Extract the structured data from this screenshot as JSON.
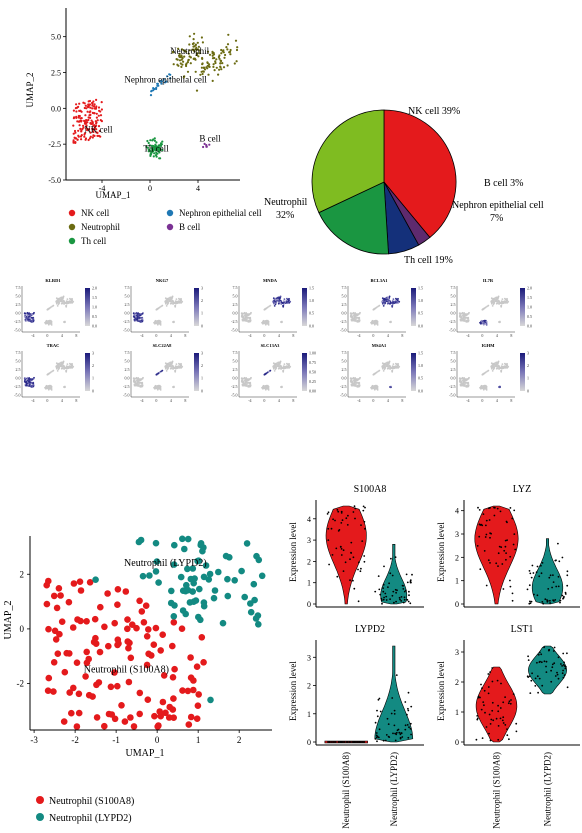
{
  "chart_data": [
    {
      "id": "umap_main",
      "type": "scatter",
      "xlabel": "UMAP_1",
      "ylabel": "UMAP_2",
      "xticks": [
        -4,
        0,
        4
      ],
      "yticks": [
        5.0,
        2.5,
        0.0,
        -2.5,
        -5.0
      ],
      "xlim": [
        -7,
        7.5
      ],
      "ylim": [
        -5,
        7
      ],
      "clusters": [
        {
          "name": "NK cell",
          "color": "#e41a1c",
          "center": [
            -5.2,
            -1.1
          ],
          "spread": [
            0.9,
            0.9
          ],
          "n": 160
        },
        {
          "name": "Neutrophil",
          "color": "#6b6b12",
          "center": [
            4.6,
            4.2
          ],
          "spread": [
            0.9,
            0.9
          ],
          "n": 150
        },
        {
          "name": "Th cell",
          "color": "#1a9641",
          "center": [
            0.4,
            -2.8
          ],
          "spread": [
            0.7,
            0.6
          ],
          "n": 80
        },
        {
          "name": "Nephron epithelial cell",
          "color": "#1f78b4",
          "center": [
            0.9,
            1.5
          ],
          "spread": [
            0.35,
            0.5
          ],
          "n": 22
        },
        {
          "name": "B cell",
          "color": "#7b3294",
          "center": [
            4.7,
            -2.6
          ],
          "spread": [
            0.2,
            0.15
          ],
          "n": 6
        }
      ],
      "annotations": [
        {
          "text": "Neutrophil",
          "x": 3.3,
          "y": 3.8
        },
        {
          "text": "Nephron epithelial cell",
          "x": 1.3,
          "y": 1.8
        },
        {
          "text": "NK cell",
          "x": -4.3,
          "y": -1.7
        },
        {
          "text": "Th cell",
          "x": 0.5,
          "y": -3.0
        },
        {
          "text": "B cell",
          "x": 5.0,
          "y": -2.3
        }
      ]
    },
    {
      "id": "pie",
      "type": "pie",
      "slices": [
        {
          "label": "NK cell 39%",
          "value": 39,
          "color": "#e41a1c"
        },
        {
          "label": "B cell 3%",
          "value": 3,
          "color": "#5e2a6e"
        },
        {
          "label": "Nephron epithelial cell 7%",
          "value": 7,
          "color": "#14307a"
        },
        {
          "label": "Th cell 19%",
          "value": 19,
          "color": "#1a9641"
        },
        {
          "label": "Neutrophil 32%",
          "value": 32,
          "color": "#7fbc21"
        }
      ]
    },
    {
      "id": "feature_plots",
      "type": "heatmap",
      "panels": [
        {
          "gene": "KLRD1",
          "ticks": [
            "2.0",
            "1.5",
            "1.0",
            "0.5",
            "0.0"
          ],
          "high": "NK cell"
        },
        {
          "gene": "NKG7",
          "ticks": [
            "3",
            "2",
            "1",
            "0"
          ],
          "high": "NK cell"
        },
        {
          "gene": "MNDA",
          "ticks": [
            "1.5",
            "1.0",
            "0.5",
            "0.0"
          ],
          "high": "Neutrophil"
        },
        {
          "gene": "BCL3A1",
          "ticks": [
            "1.5",
            "1.0",
            "0.5",
            "0.0"
          ],
          "high": "Neutrophil"
        },
        {
          "gene": "IL7R",
          "ticks": [
            "2.0",
            "1.5",
            "1.0",
            "0.5",
            "0.0"
          ],
          "high": "Th cell"
        },
        {
          "gene": "TRAC",
          "ticks": [
            "3",
            "2",
            "1",
            "0"
          ],
          "high": "NK cell"
        },
        {
          "gene": "SLC22A8",
          "ticks": [
            "3",
            "2",
            "1",
            "0"
          ],
          "high": "Nephron epithelial cell"
        },
        {
          "gene": "SLC13A3",
          "ticks": [
            "1.00",
            "0.75",
            "0.50",
            "0.25",
            "0.00"
          ],
          "high": "Nephron epithelial cell"
        },
        {
          "gene": "MS4A1",
          "ticks": [
            "1.5",
            "1.0",
            "0.5",
            "0.0"
          ],
          "high": "B cell"
        },
        {
          "gene": "IGHM",
          "ticks": [
            "3",
            "2",
            "1",
            "0"
          ],
          "high": "B cell"
        }
      ],
      "xticks": [
        "-4",
        "0",
        "4",
        "8"
      ],
      "yticks": [
        "7.5",
        "5.0",
        "2.5",
        "0.0",
        "-2.5",
        "-5.0"
      ]
    },
    {
      "id": "umap_neutrophil",
      "type": "scatter",
      "xlabel": "UMAP_1",
      "ylabel": "UMAP_2",
      "xticks": [
        -3,
        -2,
        -1,
        0,
        1,
        2
      ],
      "yticks": [
        2,
        0,
        -2
      ],
      "xlim": [
        -3.1,
        2.8
      ],
      "ylim": [
        -3.7,
        3.4
      ],
      "clusters": [
        {
          "name": "Neutrophil (S100A8)",
          "color": "#e41a1c",
          "n": 130
        },
        {
          "name": "Neutrophil (LYPD2)",
          "color": "#138a82",
          "n": 70
        }
      ],
      "annotations": [
        {
          "text": "Neutrophil (LYPD2)",
          "x": 0.2,
          "y": 2.3
        },
        {
          "text": "Neutrophil (S100A8)",
          "x": -0.75,
          "y": -1.6
        }
      ]
    },
    {
      "id": "violins",
      "type": "violin",
      "ylabel": "Expression level",
      "categories": [
        "Neutrophil (S100A8)",
        "Neutrophil (LYPD2)"
      ],
      "colors": [
        "#e41a1c",
        "#138a82"
      ],
      "panels": [
        {
          "gene": "S100A8",
          "yticks": [
            0,
            1,
            2,
            3,
            4
          ],
          "ylim": [
            0,
            4.6
          ],
          "groups": [
            {
              "min": 0,
              "max": 4.6,
              "peak": 3.2,
              "width": 0.85
            },
            {
              "min": 0,
              "max": 2.8,
              "peak": 0.4,
              "width": 0.55
            }
          ]
        },
        {
          "gene": "LYZ",
          "yticks": [
            0,
            1,
            2,
            3,
            4
          ],
          "ylim": [
            0,
            4.2
          ],
          "groups": [
            {
              "min": 0,
              "max": 4.2,
              "peak": 2.8,
              "width": 0.85
            },
            {
              "min": 0,
              "max": 2.8,
              "peak": 0.7,
              "width": 0.6
            }
          ]
        },
        {
          "gene": "LYPD2",
          "yticks": [
            0,
            1,
            2,
            3
          ],
          "ylim": [
            0,
            3.4
          ],
          "groups": [
            {
              "min": 0,
              "max": 0.05,
              "peak": 0.0,
              "width": 0.8
            },
            {
              "min": 0,
              "max": 3.4,
              "peak": 0.1,
              "width": 0.8
            }
          ]
        },
        {
          "gene": "LST1",
          "yticks": [
            0,
            1,
            2,
            3
          ],
          "ylim": [
            0,
            3.2
          ],
          "groups": [
            {
              "min": 0,
              "max": 2.5,
              "peak": 1.2,
              "width": 0.8
            },
            {
              "min": 1.6,
              "max": 3.2,
              "peak": 2.4,
              "width": 0.75
            }
          ]
        }
      ]
    }
  ],
  "legends": {
    "umap_main": [
      {
        "name": "NK cell",
        "color": "#e41a1c"
      },
      {
        "name": "Nephron epithelial cell",
        "color": "#1f78b4"
      },
      {
        "name": "Neutrophil",
        "color": "#6b6b12"
      },
      {
        "name": "B cell",
        "color": "#7b3294"
      },
      {
        "name": "Th cell",
        "color": "#1a9641"
      }
    ],
    "umap_neutrophil": [
      {
        "name": "Neutrophil (S100A8)",
        "color": "#e41a1c"
      },
      {
        "name": "Neutrophil (LYPD2)",
        "color": "#138a82"
      }
    ]
  }
}
